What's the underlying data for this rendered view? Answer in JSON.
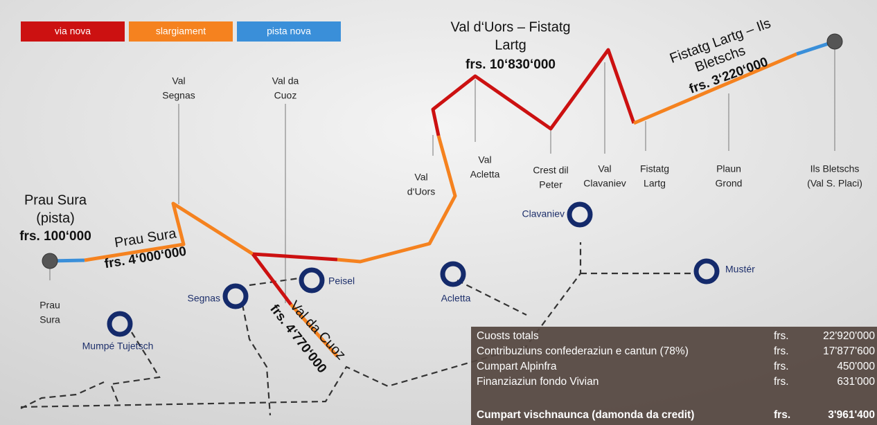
{
  "legend": [
    {
      "label": "via nova",
      "color": "#cc1111"
    },
    {
      "label": "slargiament",
      "color": "#f5821f"
    },
    {
      "label": "pista nova",
      "color": "#3a8fd9"
    }
  ],
  "sections": [
    {
      "name": [
        "Prau Sura",
        "(pista)"
      ],
      "cost": "frs. 100‘000"
    },
    {
      "name": [
        "Prau Sura"
      ],
      "cost": "frs. 4‘000‘000"
    },
    {
      "name": [
        "Val da Cuoz"
      ],
      "cost": "frs. 4‘770‘000"
    },
    {
      "name": [
        "Val d‘Uors – Fistatg",
        "Lartg"
      ],
      "cost": "frs. 10‘830‘000"
    },
    {
      "name": [
        "Fistatg Lartg – Ils",
        "Bletschs"
      ],
      "cost": "frs. 3‘220‘000"
    }
  ],
  "points": [
    [
      "Prau",
      "Sura"
    ],
    [
      "Val",
      "Segnas"
    ],
    [
      "Val da",
      "Cuoz"
    ],
    [
      "Val",
      "d‘Uors"
    ],
    [
      "Val",
      "Acletta"
    ],
    [
      "Crest dil",
      "Peter"
    ],
    [
      "Val",
      "Clavaniev"
    ],
    [
      "Fistatg",
      "Lartg"
    ],
    [
      "Plaun",
      "Grond"
    ],
    [
      "Ils Bletschs",
      "(Val S. Placi)"
    ]
  ],
  "villages": [
    "Segnas",
    "Peisel",
    "Mumpé Tujetsch",
    "Acletta",
    "Clavaniev",
    "Mustér"
  ],
  "costs": {
    "rows": [
      [
        "Cuosts totals",
        "frs.",
        "22'920'000"
      ],
      [
        "Contribuziuns confederaziun e cantun (78%)",
        "frs.",
        "17'877'600"
      ],
      [
        "Cumpart Alpinfra",
        "frs.",
        "450'000"
      ],
      [
        "Finanziaziun fondo Vivian",
        "frs.",
        "631'000"
      ]
    ],
    "total": [
      "Cumpart vischnaunca (damonda da credit)",
      "frs.",
      "3'961'400"
    ]
  }
}
